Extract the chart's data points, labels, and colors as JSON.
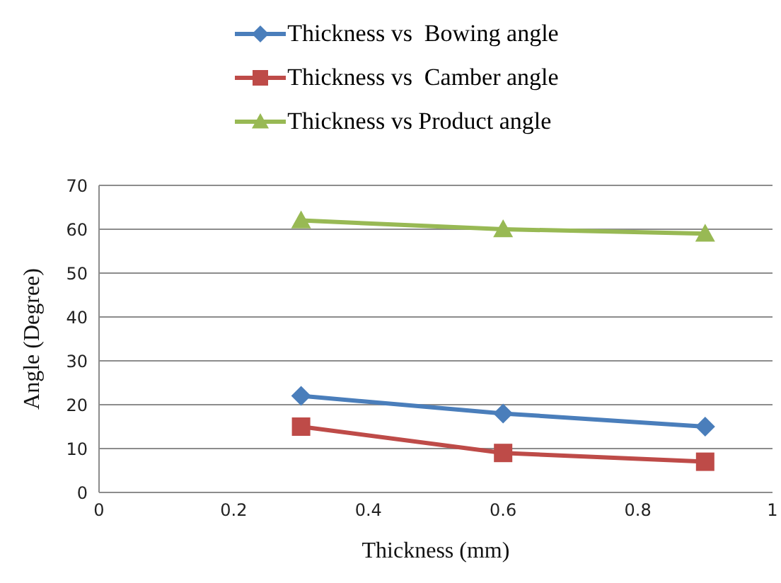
{
  "chart_data": {
    "type": "line",
    "xlabel": "Thickness  (mm)",
    "ylabel": "Angle  (Degree)",
    "x": [
      0.3,
      0.6,
      0.9
    ],
    "series": [
      {
        "name": "Thickness vs  Bowing angle",
        "color": "#4a7ebb",
        "marker": "diamond",
        "values": [
          22,
          18,
          15
        ]
      },
      {
        "name": "Thickness vs  Camber angle",
        "color": "#be4b48",
        "marker": "square",
        "values": [
          15,
          9,
          7
        ]
      },
      {
        "name": "Thickness vs Product angle",
        "color": "#98b954",
        "marker": "triangle",
        "values": [
          62,
          60,
          59
        ]
      }
    ],
    "xlim": [
      0,
      1
    ],
    "xticks": [
      0,
      0.2,
      0.4,
      0.6,
      0.8,
      1
    ],
    "ylim": [
      0,
      70
    ],
    "yticks": [
      0,
      10,
      20,
      30,
      40,
      50,
      60,
      70
    ],
    "grid": "y",
    "legend": "top"
  }
}
